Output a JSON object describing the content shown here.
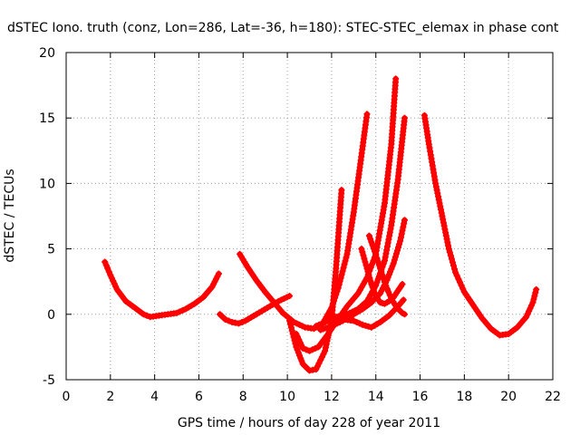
{
  "chart_data": {
    "type": "scatter",
    "title": "dSTEC Iono. truth (conz, Lon=286, Lat=-36, h=180): STEC-STEC_elemax in phase cont",
    "xlabel": "GPS time / hours of day 228 of year 2011",
    "ylabel": "dSTEC  / TECUs",
    "xlim": [
      0,
      22
    ],
    "ylim": [
      -5,
      20
    ],
    "x_ticks": [
      0,
      2,
      4,
      6,
      8,
      10,
      12,
      14,
      16,
      18,
      20,
      22
    ],
    "y_ticks": [
      -5,
      0,
      5,
      10,
      15,
      20
    ],
    "grid": true,
    "legend": "none",
    "marker": "+",
    "color": "#ff0000",
    "series": [
      {
        "x": [
          1.75,
          2.0,
          2.3,
          2.7,
          3.1,
          3.5,
          3.8,
          4.2,
          4.6,
          5.0,
          5.4,
          5.8,
          6.2,
          6.6,
          6.9
        ],
        "y": [
          4.0,
          3.0,
          1.9,
          1.0,
          0.5,
          0.0,
          -0.2,
          -0.1,
          0.0,
          0.1,
          0.4,
          0.8,
          1.3,
          2.1,
          3.1
        ]
      },
      {
        "x": [
          6.95,
          7.2,
          7.5,
          7.8,
          8.1,
          8.6,
          9.1,
          9.6,
          10.1
        ],
        "y": [
          0.0,
          -0.4,
          -0.6,
          -0.7,
          -0.5,
          0.0,
          0.5,
          1.0,
          1.4
        ]
      },
      {
        "x": [
          7.85,
          8.2,
          8.6,
          9.0,
          9.4,
          9.8,
          10.3,
          10.8,
          11.2,
          11.6,
          12.0,
          12.3,
          12.7,
          13.0,
          13.3,
          13.6
        ],
        "y": [
          4.6,
          3.6,
          2.6,
          1.7,
          0.9,
          0.1,
          -0.6,
          -1.0,
          -1.1,
          -0.7,
          0.5,
          2.0,
          4.6,
          7.8,
          11.5,
          15.3
        ]
      },
      {
        "x": [
          10.1,
          10.4,
          10.7,
          11.0,
          11.3,
          11.7,
          12.0,
          12.2,
          12.45
        ],
        "y": [
          -0.5,
          -2.5,
          -3.8,
          -4.3,
          -4.2,
          -2.8,
          -0.5,
          3.5,
          9.5
        ]
      },
      {
        "x": [
          10.4,
          10.7,
          11.0,
          11.4,
          11.8,
          12.2,
          12.7,
          13.2,
          13.6,
          14.0,
          14.4,
          14.7,
          14.9
        ],
        "y": [
          -1.5,
          -2.6,
          -2.8,
          -2.5,
          -1.6,
          -0.6,
          0.6,
          1.6,
          2.8,
          4.6,
          8.5,
          13.0,
          18.0
        ]
      },
      {
        "x": [
          11.3,
          11.7,
          12.2,
          12.7,
          13.2,
          13.6,
          14.0,
          14.4,
          14.7,
          15.0,
          15.3
        ],
        "y": [
          -0.9,
          -0.6,
          -0.2,
          0.0,
          0.4,
          1.0,
          2.2,
          4.1,
          6.8,
          10.3,
          15.0
        ]
      },
      {
        "x": [
          11.5,
          12.0,
          12.5,
          13.0,
          13.4,
          13.8,
          14.2,
          14.5,
          14.8,
          15.1,
          15.3
        ],
        "y": [
          -1.2,
          -0.9,
          -0.5,
          0.0,
          0.4,
          0.9,
          1.6,
          2.6,
          3.9,
          5.6,
          7.2
        ]
      },
      {
        "x": [
          13.35,
          13.6,
          13.8,
          14.0,
          14.2,
          14.4,
          14.6,
          14.8,
          15.0,
          15.2
        ],
        "y": [
          5.0,
          3.5,
          2.3,
          1.4,
          0.9,
          0.8,
          1.0,
          1.3,
          1.8,
          2.3
        ]
      },
      {
        "x": [
          12.2,
          12.6,
          13.0,
          13.4,
          13.8,
          14.2,
          14.6,
          15.0,
          15.25
        ],
        "y": [
          -0.3,
          -0.4,
          -0.5,
          -0.8,
          -1.0,
          -0.6,
          -0.1,
          0.6,
          1.1
        ]
      },
      {
        "x": [
          13.7,
          13.95,
          14.2,
          14.45,
          14.7,
          14.95,
          15.2,
          15.3
        ],
        "y": [
          6.0,
          4.8,
          3.5,
          2.2,
          1.2,
          0.5,
          0.1,
          0.0
        ]
      },
      {
        "x": [
          16.2,
          16.4,
          16.7,
          17.0,
          17.3,
          17.6,
          18.0,
          18.4,
          18.8,
          19.2,
          19.6,
          20.0,
          20.4,
          20.8,
          21.1,
          21.25
        ],
        "y": [
          15.2,
          13.0,
          10.0,
          7.5,
          5.0,
          3.2,
          1.7,
          0.7,
          -0.3,
          -1.1,
          -1.6,
          -1.5,
          -1.0,
          -0.2,
          0.9,
          1.9
        ]
      }
    ]
  }
}
